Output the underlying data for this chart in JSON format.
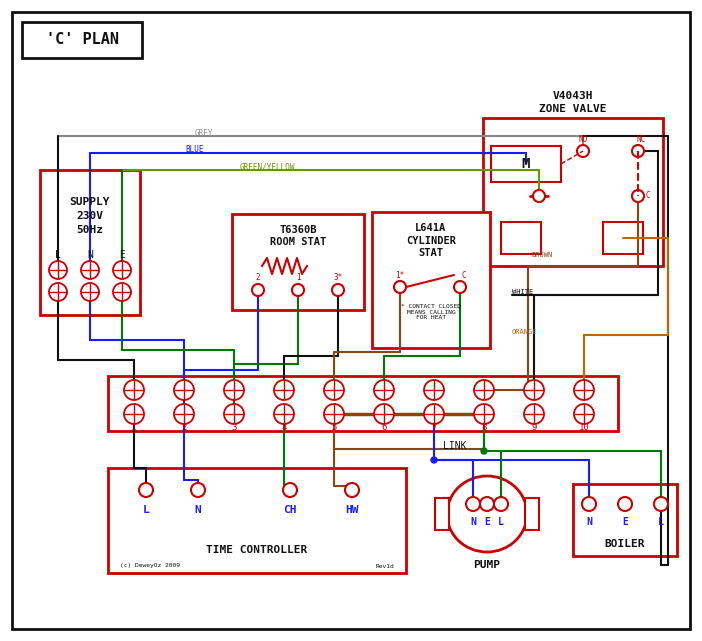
{
  "title": "'C' PLAN",
  "RED": "#cc0000",
  "BLUE": "#1a1aff",
  "GREEN": "#007700",
  "BROWN": "#8B4513",
  "GREY": "#888888",
  "ORANGE": "#bb6600",
  "BLACK": "#111111",
  "GY": "#669900",
  "supply1": "SUPPLY",
  "supply2": "230V",
  "supply3": "50Hz",
  "zone_v1": "V4043H",
  "zone_v2": "ZONE VALVE",
  "rs1": "T6360B",
  "rs2": "ROOM STAT",
  "cs1": "L641A",
  "cs2": "CYLINDER",
  "cs3": "STAT",
  "tc_title": "TIME CONTROLLER",
  "pump_title": "PUMP",
  "boiler_title": "BOILER",
  "link_label": "LINK",
  "tc_labels": [
    "L",
    "N",
    "CH",
    "HW"
  ],
  "copyright": "(c) DeweyOz 2009",
  "rev": "Rev1d",
  "note": "* CONTACT CLOSED\nMEANS CALLING\nFOR HEAT",
  "grey_lbl": "GREY",
  "blue_lbl": "BLUE",
  "gy_lbl": "GREEN/YELLOW",
  "brown_lbl": "BROWN",
  "white_lbl": "WHITE",
  "orange_lbl": "ORANGE"
}
